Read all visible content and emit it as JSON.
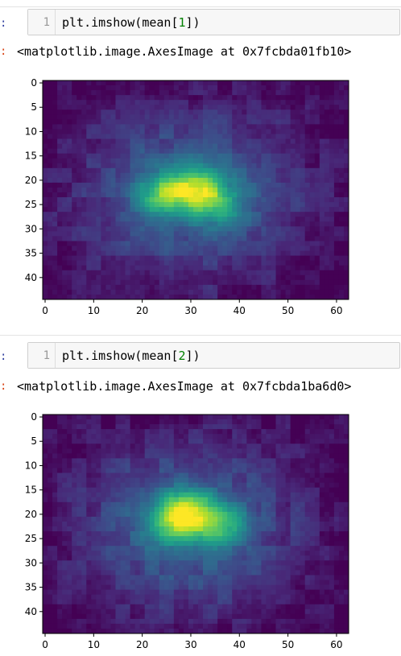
{
  "cells": [
    {
      "line_number": "1",
      "code_prefix": "plt.imshow(mean[",
      "code_index": "1",
      "code_suffix": "])",
      "output": "<matplotlib.image.AxesImage at 0x7fcbda01fb10>",
      "chart_data": {
        "type": "heatmap",
        "colormap": "viridis",
        "rows": 45,
        "cols": 63,
        "x_ticks": [
          0,
          10,
          20,
          30,
          40,
          50,
          60
        ],
        "y_ticks": [
          0,
          5,
          10,
          15,
          20,
          25,
          30,
          35,
          40
        ],
        "xlim": [
          -0.5,
          62.5
        ],
        "ylim": [
          44.5,
          -0.5
        ],
        "hotspots": [
          {
            "x": 31,
            "y": 22,
            "value": 0.95
          },
          {
            "x": 24,
            "y": 23,
            "value": 0.75
          },
          {
            "x": 36,
            "y": 25,
            "value": 0.55
          }
        ]
      }
    },
    {
      "line_number": "1",
      "code_prefix": "plt.imshow(mean[",
      "code_index": "2",
      "code_suffix": "])",
      "output": "<matplotlib.image.AxesImage at 0x7fcbda1ba6d0>",
      "chart_data": {
        "type": "heatmap",
        "colormap": "viridis",
        "rows": 45,
        "cols": 63,
        "x_ticks": [
          0,
          10,
          20,
          30,
          40,
          50,
          60
        ],
        "y_ticks": [
          0,
          5,
          10,
          15,
          20,
          25,
          30,
          35,
          40
        ],
        "xlim": [
          -0.5,
          62.5
        ],
        "ylim": [
          44.5,
          -0.5
        ],
        "hotspots": [
          {
            "x": 29,
            "y": 19,
            "value": 0.98
          },
          {
            "x": 36,
            "y": 22,
            "value": 0.7
          },
          {
            "x": 26,
            "y": 22,
            "value": 0.65
          }
        ]
      }
    }
  ],
  "prompt_marker": ":"
}
